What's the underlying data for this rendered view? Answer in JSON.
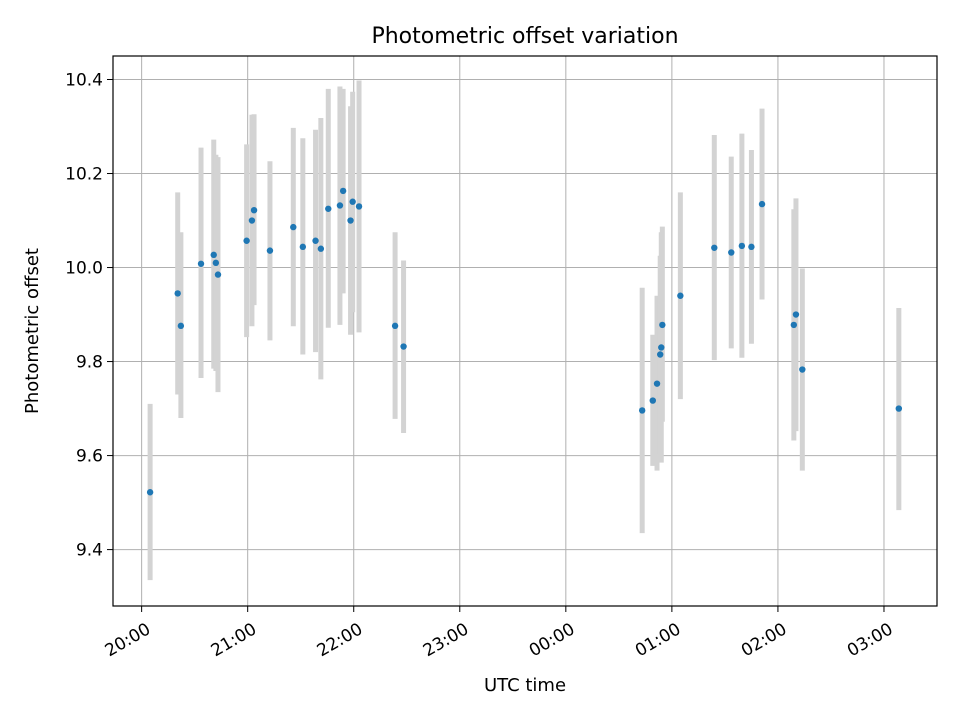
{
  "chart_data": {
    "type": "scatter",
    "title": "Photometric offset variation",
    "xlabel": "UTC time",
    "ylabel": "Photometric offset",
    "x_unit": "hours after 20:00 UTC",
    "xlim": [
      -0.27,
      7.5
    ],
    "ylim": [
      9.28,
      10.45
    ],
    "grid": true,
    "marker_color": "#1f77b4",
    "errorbar_color": "#d3d3d3",
    "x_ticks": [
      {
        "value": 0,
        "label": "20:00"
      },
      {
        "value": 1,
        "label": "21:00"
      },
      {
        "value": 2,
        "label": "22:00"
      },
      {
        "value": 3,
        "label": "23:00"
      },
      {
        "value": 4,
        "label": "00:00"
      },
      {
        "value": 5,
        "label": "01:00"
      },
      {
        "value": 6,
        "label": "02:00"
      },
      {
        "value": 7,
        "label": "03:00"
      }
    ],
    "y_ticks": [
      {
        "value": 9.4,
        "label": "9.4"
      },
      {
        "value": 9.6,
        "label": "9.6"
      },
      {
        "value": 9.8,
        "label": "9.8"
      },
      {
        "value": 10.0,
        "label": "10.0"
      },
      {
        "value": 10.2,
        "label": "10.2"
      },
      {
        "value": 10.4,
        "label": "10.4"
      }
    ],
    "points": [
      {
        "x": 0.08,
        "y": 9.522,
        "lo": 9.335,
        "hi": 9.71
      },
      {
        "x": 0.34,
        "y": 9.945,
        "lo": 9.73,
        "hi": 10.16
      },
      {
        "x": 0.37,
        "y": 9.876,
        "lo": 9.68,
        "hi": 10.075
      },
      {
        "x": 0.56,
        "y": 10.008,
        "lo": 9.765,
        "hi": 10.255
      },
      {
        "x": 0.68,
        "y": 10.027,
        "lo": 9.785,
        "hi": 10.272
      },
      {
        "x": 0.7,
        "y": 10.01,
        "lo": 9.78,
        "hi": 10.24
      },
      {
        "x": 0.72,
        "y": 9.985,
        "lo": 9.735,
        "hi": 10.235
      },
      {
        "x": 0.99,
        "y": 10.057,
        "lo": 9.852,
        "hi": 10.262
      },
      {
        "x": 1.04,
        "y": 10.1,
        "lo": 9.875,
        "hi": 10.325
      },
      {
        "x": 1.06,
        "y": 10.122,
        "lo": 9.92,
        "hi": 10.326
      },
      {
        "x": 1.21,
        "y": 10.036,
        "lo": 9.845,
        "hi": 10.226
      },
      {
        "x": 1.43,
        "y": 10.086,
        "lo": 9.875,
        "hi": 10.297
      },
      {
        "x": 1.52,
        "y": 10.044,
        "lo": 9.815,
        "hi": 10.275
      },
      {
        "x": 1.64,
        "y": 10.057,
        "lo": 9.82,
        "hi": 10.293
      },
      {
        "x": 1.69,
        "y": 10.04,
        "lo": 9.762,
        "hi": 10.318
      },
      {
        "x": 1.76,
        "y": 10.125,
        "lo": 9.872,
        "hi": 10.38
      },
      {
        "x": 1.87,
        "y": 10.132,
        "lo": 9.878,
        "hi": 10.385
      },
      {
        "x": 1.9,
        "y": 10.163,
        "lo": 9.945,
        "hi": 10.38
      },
      {
        "x": 1.97,
        "y": 10.1,
        "lo": 9.857,
        "hi": 10.343
      },
      {
        "x": 1.99,
        "y": 10.14,
        "lo": 9.905,
        "hi": 10.374
      },
      {
        "x": 2.05,
        "y": 10.13,
        "lo": 9.862,
        "hi": 10.398
      },
      {
        "x": 2.39,
        "y": 9.876,
        "lo": 9.678,
        "hi": 10.075
      },
      {
        "x": 2.47,
        "y": 9.832,
        "lo": 9.648,
        "hi": 10.015
      },
      {
        "x": 4.72,
        "y": 9.696,
        "lo": 9.435,
        "hi": 9.957
      },
      {
        "x": 4.82,
        "y": 9.717,
        "lo": 9.578,
        "hi": 9.857
      },
      {
        "x": 4.86,
        "y": 9.753,
        "lo": 9.568,
        "hi": 9.94
      },
      {
        "x": 4.89,
        "y": 9.815,
        "lo": 9.602,
        "hi": 10.025
      },
      {
        "x": 4.9,
        "y": 9.83,
        "lo": 9.585,
        "hi": 10.075
      },
      {
        "x": 4.91,
        "y": 9.878,
        "lo": 9.672,
        "hi": 10.087
      },
      {
        "x": 5.08,
        "y": 9.94,
        "lo": 9.72,
        "hi": 10.16
      },
      {
        "x": 5.4,
        "y": 10.042,
        "lo": 9.803,
        "hi": 10.282
      },
      {
        "x": 5.56,
        "y": 10.032,
        "lo": 9.828,
        "hi": 10.236
      },
      {
        "x": 5.66,
        "y": 10.046,
        "lo": 9.808,
        "hi": 10.285
      },
      {
        "x": 5.75,
        "y": 10.044,
        "lo": 9.838,
        "hi": 10.25
      },
      {
        "x": 5.85,
        "y": 10.135,
        "lo": 9.932,
        "hi": 10.338
      },
      {
        "x": 6.15,
        "y": 9.878,
        "lo": 9.632,
        "hi": 10.124
      },
      {
        "x": 6.17,
        "y": 9.9,
        "lo": 9.652,
        "hi": 10.147
      },
      {
        "x": 6.23,
        "y": 9.783,
        "lo": 9.568,
        "hi": 9.998
      },
      {
        "x": 7.14,
        "y": 9.7,
        "lo": 9.484,
        "hi": 9.914
      }
    ]
  }
}
